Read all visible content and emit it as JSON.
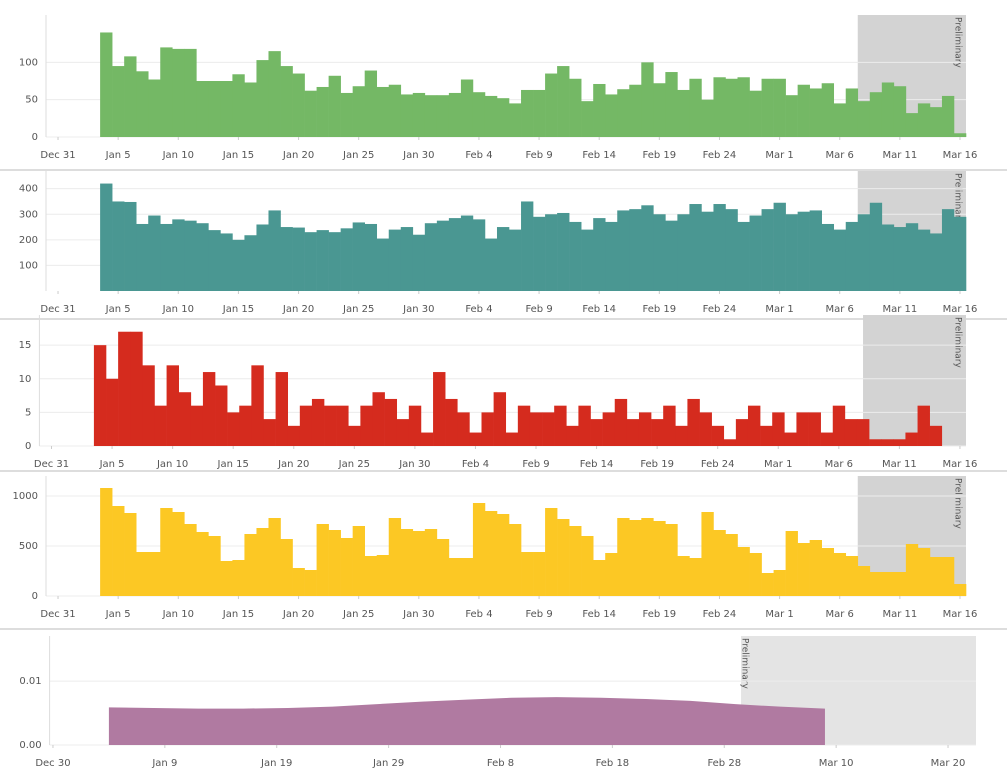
{
  "chart_data": [
    {
      "type": "bar",
      "color": "#74b865",
      "x": [
        4,
        5,
        6,
        7,
        8,
        9,
        10,
        11,
        12,
        13,
        14,
        15,
        16,
        17,
        18,
        19,
        20,
        21,
        22,
        23,
        24,
        25,
        26,
        27,
        28,
        29,
        30,
        31,
        32,
        33,
        34,
        35,
        36,
        37,
        38,
        39,
        40,
        41,
        42,
        43,
        44,
        45,
        46,
        47,
        48,
        49,
        50,
        51,
        52,
        53,
        54,
        55,
        56,
        57,
        58,
        59,
        60,
        61,
        62,
        63,
        64,
        65,
        66,
        67,
        68,
        69,
        70,
        71,
        72,
        73,
        74,
        75
      ],
      "values": [
        140,
        95,
        108,
        88,
        77,
        120,
        118,
        118,
        75,
        75,
        75,
        84,
        73,
        103,
        115,
        95,
        85,
        62,
        67,
        82,
        59,
        68,
        89,
        67,
        70,
        57,
        59,
        56,
        56,
        59,
        77,
        60,
        55,
        52,
        45,
        63,
        63,
        85,
        95,
        78,
        48,
        71,
        57,
        64,
        70,
        100,
        72,
        87,
        63,
        78,
        50,
        80,
        78,
        80,
        62,
        78,
        78,
        56,
        70,
        65,
        72,
        45,
        65,
        48,
        60,
        73,
        68,
        32,
        45,
        40,
        55,
        5
      ],
      "xlim": [
        -1,
        75.5
      ],
      "ylim": [
        0,
        150
      ],
      "yticks": [
        0,
        50,
        100
      ],
      "xticks": [
        {
          "value": 0,
          "label": "Dec 31"
        },
        {
          "value": 5,
          "label": "Jan 5"
        },
        {
          "value": 10,
          "label": "Jan 10"
        },
        {
          "value": 15,
          "label": "Jan 15"
        },
        {
          "value": 20,
          "label": "Jan 20"
        },
        {
          "value": 25,
          "label": "Jan 25"
        },
        {
          "value": 30,
          "label": "Jan 30"
        },
        {
          "value": 35,
          "label": "Feb 4"
        },
        {
          "value": 40,
          "label": "Feb 9"
        },
        {
          "value": 45,
          "label": "Feb 14"
        },
        {
          "value": 50,
          "label": "Feb 19"
        },
        {
          "value": 55,
          "label": "Feb 24"
        },
        {
          "value": 60,
          "label": "Mar 1"
        },
        {
          "value": 65,
          "label": "Mar 6"
        },
        {
          "value": 70,
          "label": "Mar 11"
        },
        {
          "value": 75,
          "label": "Mar 16"
        }
      ],
      "shaded": {
        "from": 66.5,
        "label": "Preliminary",
        "color": "#d3d3d3"
      },
      "grid": true
    },
    {
      "type": "bar",
      "color": "#4a9792",
      "x": [
        4,
        5,
        6,
        7,
        8,
        9,
        10,
        11,
        12,
        13,
        14,
        15,
        16,
        17,
        18,
        19,
        20,
        21,
        22,
        23,
        24,
        25,
        26,
        27,
        28,
        29,
        30,
        31,
        32,
        33,
        34,
        35,
        36,
        37,
        38,
        39,
        40,
        41,
        42,
        43,
        44,
        45,
        46,
        47,
        48,
        49,
        50,
        51,
        52,
        53,
        54,
        55,
        56,
        57,
        58,
        59,
        60,
        61,
        62,
        63,
        64,
        65,
        66,
        67,
        68,
        69,
        70,
        71,
        72,
        73,
        74,
        75
      ],
      "values": [
        420,
        350,
        348,
        262,
        295,
        262,
        280,
        275,
        265,
        238,
        225,
        200,
        218,
        260,
        315,
        250,
        248,
        230,
        238,
        230,
        245,
        268,
        262,
        205,
        240,
        250,
        220,
        265,
        275,
        285,
        295,
        280,
        205,
        250,
        240,
        350,
        290,
        300,
        305,
        270,
        240,
        285,
        270,
        315,
        320,
        335,
        300,
        275,
        300,
        340,
        310,
        340,
        320,
        270,
        295,
        320,
        345,
        300,
        310,
        315,
        262,
        240,
        270,
        300,
        345,
        260,
        250,
        265,
        240,
        225,
        320,
        290
      ],
      "xlim": [
        -1,
        75.5
      ],
      "ylim": [
        0,
        430
      ],
      "yticks": [
        100,
        200,
        300,
        400
      ],
      "xticks": [
        {
          "value": 0,
          "label": "Dec 31"
        },
        {
          "value": 5,
          "label": "Jan 5"
        },
        {
          "value": 10,
          "label": "Jan 10"
        },
        {
          "value": 15,
          "label": "Jan 15"
        },
        {
          "value": 20,
          "label": "Jan 20"
        },
        {
          "value": 25,
          "label": "Jan 25"
        },
        {
          "value": 30,
          "label": "Jan 30"
        },
        {
          "value": 35,
          "label": "Feb 4"
        },
        {
          "value": 40,
          "label": "Feb 9"
        },
        {
          "value": 45,
          "label": "Feb 14"
        },
        {
          "value": 50,
          "label": "Feb 19"
        },
        {
          "value": 55,
          "label": "Feb 24"
        },
        {
          "value": 60,
          "label": "Mar 1"
        },
        {
          "value": 65,
          "label": "Mar 6"
        },
        {
          "value": 70,
          "label": "Mar 11"
        },
        {
          "value": 75,
          "label": "Mar 16"
        }
      ],
      "shaded": {
        "from": 66.5,
        "label": "Preliminary",
        "color": "#d3d3d3"
      },
      "grid": true
    },
    {
      "type": "bar",
      "color": "#d52b1e",
      "x": [
        4,
        5,
        6,
        7,
        8,
        9,
        10,
        11,
        12,
        13,
        14,
        15,
        16,
        17,
        18,
        19,
        20,
        21,
        22,
        23,
        24,
        25,
        26,
        27,
        28,
        29,
        30,
        31,
        32,
        33,
        34,
        35,
        36,
        37,
        38,
        39,
        40,
        41,
        42,
        43,
        44,
        45,
        46,
        47,
        48,
        49,
        50,
        51,
        52,
        53,
        54,
        55,
        56,
        57,
        58,
        59,
        60,
        61,
        62,
        63,
        64,
        65,
        66,
        67,
        68,
        69,
        70,
        71,
        72,
        73
      ],
      "values": [
        15,
        10,
        17,
        17,
        12,
        6,
        12,
        8,
        6,
        11,
        9,
        5,
        6,
        12,
        4,
        11,
        3,
        6,
        7,
        6,
        6,
        3,
        6,
        8,
        7,
        4,
        6,
        2,
        11,
        7,
        5,
        2,
        5,
        8,
        2,
        6,
        5,
        5,
        6,
        3,
        6,
        4,
        5,
        7,
        4,
        5,
        4,
        6,
        3,
        7,
        5,
        3,
        1,
        4,
        6,
        3,
        5,
        2,
        5,
        5,
        2,
        6,
        4,
        4,
        1,
        1,
        1,
        2,
        6,
        3
      ],
      "xlim": [
        -1,
        75.5
      ],
      "ylim": [
        0,
        18
      ],
      "yticks": [
        0,
        5,
        10,
        15
      ],
      "xticks": [
        {
          "value": 0,
          "label": "Dec 31"
        },
        {
          "value": 5,
          "label": "Jan 5"
        },
        {
          "value": 10,
          "label": "Jan 10"
        },
        {
          "value": 15,
          "label": "Jan 15"
        },
        {
          "value": 20,
          "label": "Jan 20"
        },
        {
          "value": 25,
          "label": "Jan 25"
        },
        {
          "value": 30,
          "label": "Jan 30"
        },
        {
          "value": 35,
          "label": "Feb 4"
        },
        {
          "value": 40,
          "label": "Feb 9"
        },
        {
          "value": 45,
          "label": "Feb 14"
        },
        {
          "value": 50,
          "label": "Feb 19"
        },
        {
          "value": 55,
          "label": "Feb 24"
        },
        {
          "value": 60,
          "label": "Mar 1"
        },
        {
          "value": 65,
          "label": "Mar 6"
        },
        {
          "value": 70,
          "label": "Mar 11"
        },
        {
          "value": 75,
          "label": "Mar 16"
        }
      ],
      "shaded": {
        "from": 67,
        "label": "Preliminary",
        "color": "#d3d3d3"
      },
      "grid": true
    },
    {
      "type": "bar",
      "color": "#fcc824",
      "x": [
        4,
        5,
        6,
        7,
        8,
        9,
        10,
        11,
        12,
        13,
        14,
        15,
        16,
        17,
        18,
        19,
        20,
        21,
        22,
        23,
        24,
        25,
        26,
        27,
        28,
        29,
        30,
        31,
        32,
        33,
        34,
        35,
        36,
        37,
        38,
        39,
        40,
        41,
        42,
        43,
        44,
        45,
        46,
        47,
        48,
        49,
        50,
        51,
        52,
        53,
        54,
        55,
        56,
        57,
        58,
        59,
        60,
        61,
        62,
        63,
        64,
        65,
        66,
        67,
        68,
        69,
        70,
        71,
        72,
        73,
        74,
        75
      ],
      "values": [
        1080,
        900,
        830,
        440,
        440,
        880,
        840,
        720,
        640,
        600,
        350,
        360,
        620,
        680,
        780,
        570,
        280,
        260,
        720,
        660,
        580,
        700,
        400,
        410,
        780,
        670,
        650,
        670,
        570,
        380,
        380,
        930,
        850,
        820,
        720,
        440,
        440,
        880,
        770,
        700,
        600,
        360,
        430,
        780,
        760,
        780,
        750,
        720,
        400,
        380,
        840,
        660,
        620,
        490,
        430,
        230,
        260,
        650,
        530,
        560,
        480,
        430,
        400,
        300,
        240,
        240,
        240,
        520,
        480,
        390,
        390,
        120
      ],
      "xlim": [
        -1,
        75.5
      ],
      "ylim": [
        0,
        1100
      ],
      "yticks": [
        0,
        500,
        1000
      ],
      "xticks": [
        {
          "value": 0,
          "label": "Dec 31"
        },
        {
          "value": 5,
          "label": "Jan 5"
        },
        {
          "value": 10,
          "label": "Jan 10"
        },
        {
          "value": 15,
          "label": "Jan 15"
        },
        {
          "value": 20,
          "label": "Jan 20"
        },
        {
          "value": 25,
          "label": "Jan 25"
        },
        {
          "value": 30,
          "label": "Jan 30"
        },
        {
          "value": 35,
          "label": "Feb 4"
        },
        {
          "value": 40,
          "label": "Feb 9"
        },
        {
          "value": 45,
          "label": "Feb 14"
        },
        {
          "value": 50,
          "label": "Feb 19"
        },
        {
          "value": 55,
          "label": "Feb 24"
        },
        {
          "value": 60,
          "label": "Mar 1"
        },
        {
          "value": 65,
          "label": "Mar 6"
        },
        {
          "value": 70,
          "label": "Mar 11"
        },
        {
          "value": 75,
          "label": "Mar 16"
        }
      ],
      "shaded": {
        "from": 66.5,
        "label": "Preliminary",
        "color": "#d3d3d3"
      },
      "grid": true
    },
    {
      "type": "area",
      "color": "#b07aa1",
      "x": [
        4,
        8,
        12,
        16,
        20,
        24,
        28,
        32,
        36,
        40,
        44,
        48,
        52,
        56,
        60,
        64,
        68
      ],
      "values": [
        0.0059,
        0.0058,
        0.0057,
        0.0057,
        0.0058,
        0.006,
        0.0064,
        0.0068,
        0.0071,
        0.0074,
        0.0075,
        0.0074,
        0.0072,
        0.0069,
        0.0064,
        0.006,
        0.0057
      ],
      "xlim": [
        -1.3,
        81.5
      ],
      "ylim": [
        0,
        0.0155
      ],
      "yticks": [
        {
          "value": 0,
          "label": "0.00"
        },
        0.01
      ],
      "xticks": [
        {
          "value": -1,
          "label": "Dec 30"
        },
        {
          "value": 9,
          "label": "Jan 9"
        },
        {
          "value": 19,
          "label": "Jan 19"
        },
        {
          "value": 29,
          "label": "Jan 29"
        },
        {
          "value": 39,
          "label": "Feb 8"
        },
        {
          "value": 49,
          "label": "Feb 18"
        },
        {
          "value": 59,
          "label": "Feb 28"
        },
        {
          "value": 69,
          "label": "Mar 10"
        },
        {
          "value": 79,
          "label": "Mar 20"
        }
      ],
      "shaded": {
        "from": 60.5,
        "label": "Preliminary",
        "color": "#e4e4e4"
      },
      "grid": true
    }
  ]
}
